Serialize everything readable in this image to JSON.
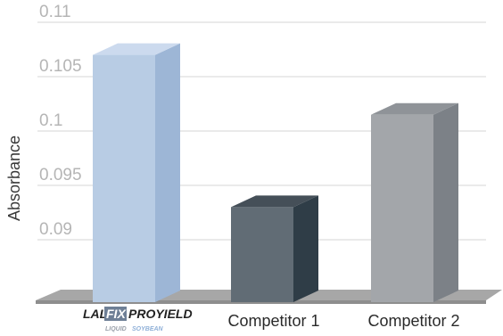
{
  "chart_data": {
    "type": "bar",
    "categories": [
      "LALFIX PROYIELD LIQUID SOYBEAN",
      "Competitor 1",
      "Competitor 2"
    ],
    "values": [
      0.107,
      0.093,
      0.1015
    ],
    "ylabel": "Absorbance",
    "ylim": [
      0.085,
      0.11
    ],
    "yticks": [
      0.09,
      0.095,
      0.1,
      0.105,
      0.11
    ],
    "ytick_labels": [
      "0.09",
      "0.095",
      "0.1",
      "0.105",
      "0.11"
    ],
    "grid": true,
    "style": "3d-bar",
    "colors": [
      {
        "front": "#b8cce4",
        "side": "#9db6d6",
        "top": "#ccdaee"
      },
      {
        "front": "#616c75",
        "side": "#2f3d47",
        "top": "#454f58"
      },
      {
        "front": "#a3a6aa",
        "side": "#7c8187",
        "top": "#8f9398"
      }
    ],
    "floor_color": "#a7a7a7",
    "grid_color": "#d4d4d4",
    "logo": {
      "part1": "LAL",
      "part2": "FIX",
      "part3": "PROYIELD",
      "sub1": "LIQUID",
      "sub2": "SOYBEAN"
    }
  }
}
